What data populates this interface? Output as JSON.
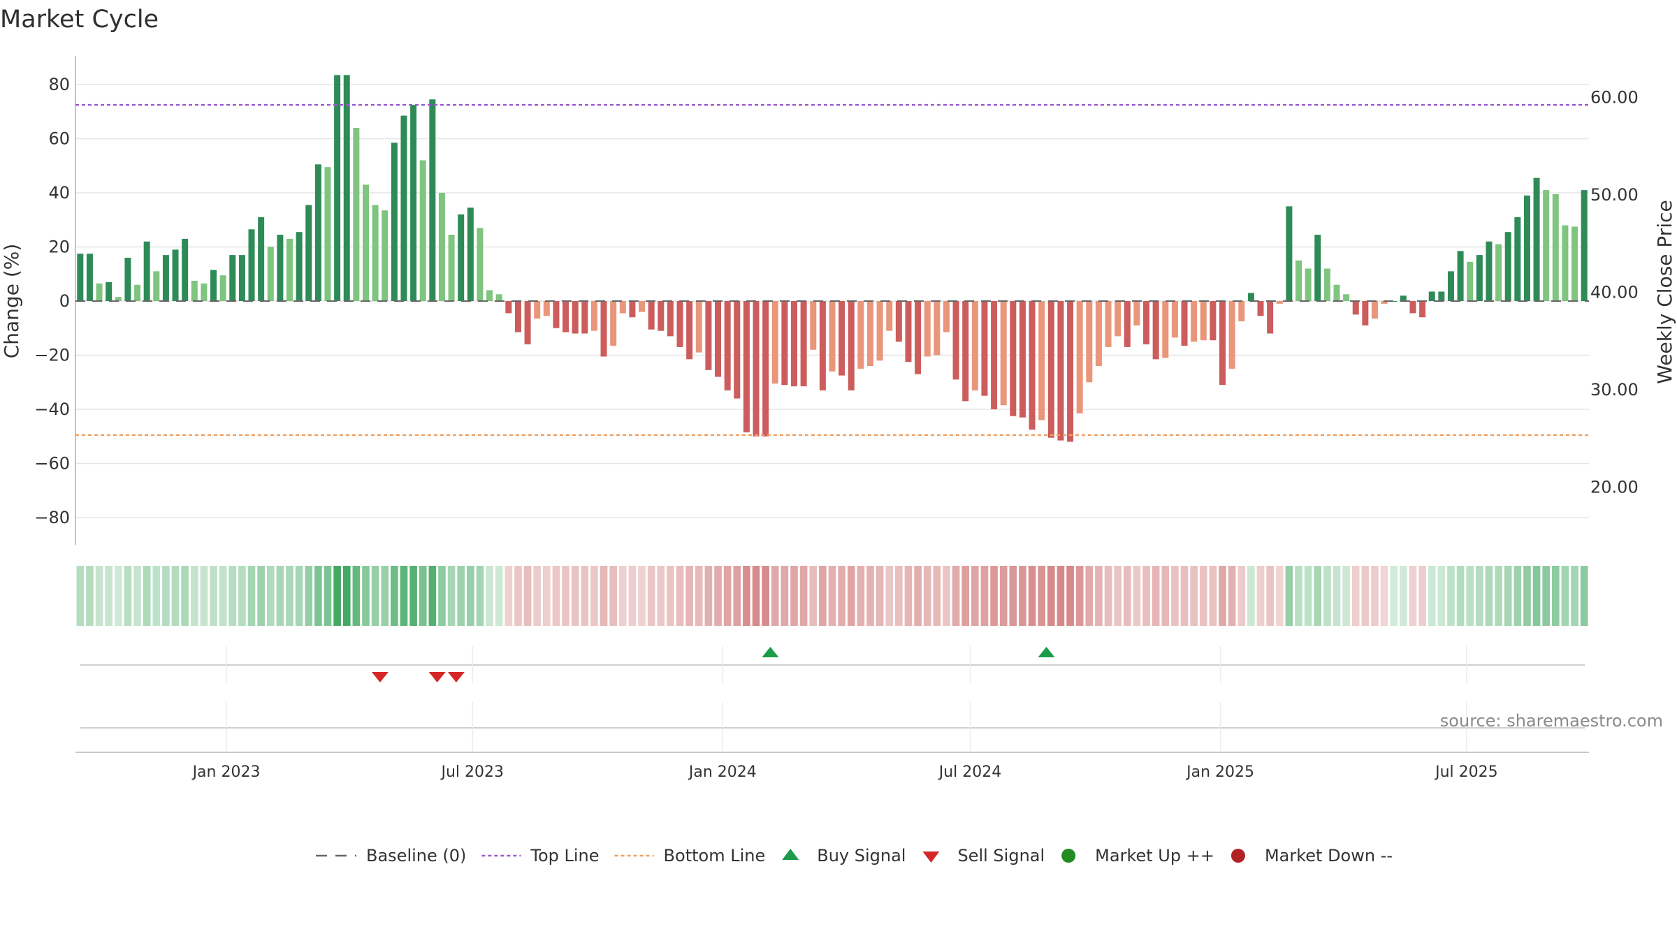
{
  "title": "Market Cycle",
  "source": "source: sharemaestro.com",
  "colors": {
    "strong_up": "#2e8b57",
    "up": "#7fc47f",
    "strong_down": "#cd5c5c",
    "down": "#e9967a",
    "top_line": "#9b59d0",
    "bottom_line": "#f0a060",
    "buy": "#1a9c4a",
    "sell": "#d62728",
    "grid": "#e6e6e6",
    "market_up": "#228b22",
    "market_down": "#b22222"
  },
  "chart_data": {
    "type": "bar",
    "title": "Market Cycle",
    "ylabel": "Change (%)",
    "y2label": "Weekly Close Price",
    "ylim": [
      -90,
      90
    ],
    "y2lim": [
      15,
      65
    ],
    "yticks": [
      80,
      60,
      40,
      20,
      0,
      -20,
      -40,
      -60,
      -80
    ],
    "ytick_labels": [
      "80",
      "60",
      "40",
      "20",
      "0",
      "−20",
      "−40",
      "−60",
      "−80"
    ],
    "y2ticks": [
      60,
      50,
      40,
      30,
      20
    ],
    "y2tick_labels": [
      "60.00",
      "50.00",
      "40.00",
      "30.00",
      "20.00"
    ],
    "x_start": "2022-09-12",
    "x_end": "2025-09-29",
    "xticks": [
      "2023-01-01",
      "2023-07-01",
      "2024-01-01",
      "2024-07-01",
      "2025-01-01",
      "2025-07-01"
    ],
    "xtick_labels": [
      "Jan 2023",
      "Jul 2023",
      "Jan 2024",
      "Jul 2024",
      "Jan 2025",
      "Jul 2025"
    ],
    "top_line": 72.5,
    "bottom_line": -49.5,
    "values": [
      17.5,
      17.5,
      6.5,
      7,
      1.5,
      16,
      6,
      22,
      11,
      17,
      19,
      23,
      7.5,
      6.5,
      11.5,
      9.5,
      17,
      17,
      26.5,
      31,
      20,
      24.5,
      23,
      25.5,
      35.5,
      50.5,
      49.5,
      83.5,
      83.5,
      64,
      43,
      35.5,
      33.5,
      58.5,
      68.5,
      72.5,
      52,
      74.5,
      40,
      24.5,
      32,
      34.5,
      27,
      4,
      2.5,
      -4.5,
      -11.5,
      -16,
      -6.5,
      -5.5,
      -10,
      -11.5,
      -12,
      -12,
      -11,
      -20.5,
      -16.5,
      -4.5,
      -6,
      -4,
      -10.5,
      -11,
      -13,
      -17,
      -21.5,
      -19,
      -25.5,
      -28,
      -33,
      -36,
      -48.5,
      -50,
      -50,
      -30.5,
      -31,
      -31.5,
      -31.5,
      -18,
      -33,
      -26,
      -27.5,
      -33,
      -25,
      -24,
      -22,
      -11,
      -15,
      -22.5,
      -27,
      -20.5,
      -20,
      -11.5,
      -29,
      -37,
      -33,
      -35,
      -40,
      -38.5,
      -42.5,
      -43,
      -47.5,
      -44,
      -50.5,
      -51.5,
      -52,
      -41.5,
      -30,
      -24,
      -17,
      -13,
      -17,
      -9,
      -16,
      -21.5,
      -21,
      -13.5,
      -16.5,
      -15,
      -14.5,
      -14.5,
      -31,
      -25,
      -7.5,
      3,
      -5.5,
      -12,
      -1,
      35,
      15,
      12,
      24.5,
      12,
      6,
      2.5,
      -5,
      -9,
      -6.5,
      -1,
      0,
      2,
      -4.5,
      -6,
      3.5,
      3.5,
      11,
      18.5,
      14.5,
      17,
      22,
      21,
      25.5,
      31,
      39,
      45.5,
      41,
      39.5,
      28,
      27.5,
      41
    ],
    "buy_signals": [
      "2024-02-05",
      "2024-08-26"
    ],
    "sell_signals": [
      "2023-04-24",
      "2023-06-05",
      "2023-06-19"
    ],
    "legend": [
      {
        "label": "Baseline (0)",
        "symbol": "dash-line"
      },
      {
        "label": "Top Line",
        "symbol": "dotted-line-purple"
      },
      {
        "label": "Bottom Line",
        "symbol": "dotted-line-orange"
      },
      {
        "label": "Buy Signal",
        "symbol": "triangle-up-green"
      },
      {
        "label": "Sell Signal",
        "symbol": "triangle-down-red"
      },
      {
        "label": "Market Up ++",
        "symbol": "circle-green"
      },
      {
        "label": "Market Down --",
        "symbol": "circle-red"
      }
    ],
    "legend_position": "bottom"
  }
}
